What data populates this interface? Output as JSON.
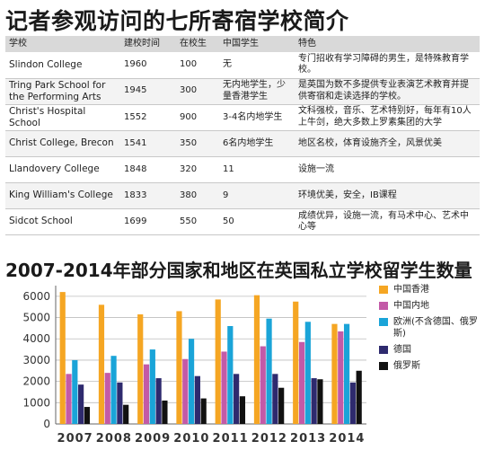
{
  "title": "记者参观访问的七所寄宿学校简介",
  "table": {
    "headers": [
      "学校",
      "建校时间",
      "在校生",
      "中国学生",
      "特色"
    ],
    "rows": [
      [
        "Slindon College",
        "1960",
        "100",
        "无",
        "专门招收有学习障碍的男生，是特殊教育学校。"
      ],
      [
        "Tring Park School for the Performing  Arts",
        "1945",
        "300",
        "无内地学生，少量香港学生",
        "是英国为数不多提供专业表演艺术教育并提供寄宿和走读选择的学校。"
      ],
      [
        "Christ's Hospital School",
        "1552",
        "900",
        "3-4名内地学生",
        "文科强校，音乐、艺术特别好，每年有10人上牛剑，绝大多数上罗素集团的大学"
      ],
      [
        "Christ College, Brecon",
        "1541",
        "350",
        "6名内地学生",
        "地区名校，体育设施齐全，风景优美"
      ],
      [
        "Llandovery College",
        "1848",
        "320",
        "11",
        "设施一流"
      ],
      [
        "King William's College",
        "1833",
        "380",
        "9",
        "环境优美，安全，IB课程"
      ],
      [
        "Sidcot School",
        "1699",
        "550",
        "50",
        "成绩优异，设施一流，有马术中心、艺术中心等"
      ]
    ]
  },
  "chart_title": "2007-2014年部分国家和地区在英国私立学校留学生数量",
  "chart_data": {
    "type": "bar",
    "categories": [
      "2007",
      "2008",
      "2009",
      "2010",
      "2011",
      "2012",
      "2013",
      "2014"
    ],
    "series": [
      {
        "name": "中国香港",
        "color": "#f5a623",
        "values": [
          6200,
          5600,
          5150,
          5300,
          5850,
          6050,
          5750,
          4700
        ]
      },
      {
        "name": "中国内地",
        "color": "#c35aa7",
        "values": [
          2350,
          2400,
          2800,
          3050,
          3400,
          3650,
          3850,
          4350
        ]
      },
      {
        "name": "欧洲(不含德国、俄罗斯)",
        "color": "#1aa4d8",
        "values": [
          3000,
          3200,
          3500,
          4000,
          4600,
          4950,
          4800,
          4700
        ]
      },
      {
        "name": "德国",
        "color": "#2e2a6e",
        "values": [
          1850,
          1950,
          2150,
          2250,
          2350,
          2350,
          2150,
          1950
        ]
      },
      {
        "name": "俄罗斯",
        "color": "#111111",
        "values": [
          800,
          900,
          1100,
          1200,
          1300,
          1700,
          2100,
          2500
        ]
      }
    ],
    "ylim": [
      0,
      6500
    ],
    "yticks": [
      0,
      1000,
      2000,
      3000,
      4000,
      5000,
      6000
    ],
    "grid": true,
    "legend": "right"
  }
}
